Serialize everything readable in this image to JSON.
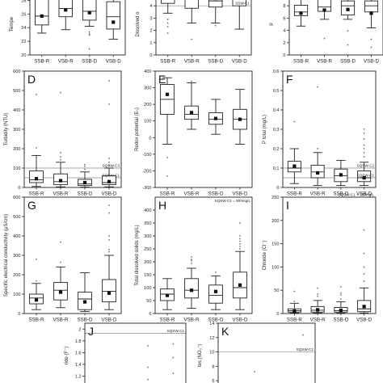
{
  "figure": {
    "categories": [
      "SSB-R",
      "VSB-R",
      "SSB-D",
      "VSB-D"
    ]
  },
  "chart_data": [
    {
      "type": "box",
      "letter": "",
      "ylabel": "Tempe",
      "ylim": [
        20,
        29
      ],
      "yticks": [
        20,
        22,
        24,
        26,
        28
      ],
      "categories": [
        "SSB-R",
        "VSB-R",
        "SSB-D",
        "VSB-D"
      ],
      "boxes": [
        {
          "min": 23.2,
          "q1": 24.4,
          "median": 25.7,
          "q3": 28.3,
          "max": 29.5,
          "mean": 25.7,
          "outliers": []
        },
        {
          "min": 23.7,
          "q1": 25.6,
          "median": 26.8,
          "q3": 28.6,
          "max": 29.5,
          "mean": 26.6,
          "outliers": []
        },
        {
          "min": 24.2,
          "q1": 25.1,
          "median": 26.4,
          "q3": 28.2,
          "max": 29.5,
          "mean": 26.2,
          "outliers": [
            23.4,
            23.1,
            22.9,
            20.9
          ]
        },
        {
          "min": 22.3,
          "q1": 23.8,
          "median": 25.6,
          "q3": 27.8,
          "max": 29.5,
          "mean": 24.8,
          "outliers": []
        }
      ],
      "reference_lines": []
    },
    {
      "type": "box",
      "letter": "",
      "ylabel": "Dissolved o",
      "ylim": [
        0,
        5
      ],
      "yticks": [
        0,
        1,
        2,
        3,
        4
      ],
      "categories": [
        "SSB-R",
        "VSB-R",
        "SSB-D",
        "VSB-D"
      ],
      "boxes": [
        {
          "min": 3.4,
          "q1": 4.2,
          "median": 4.6,
          "q3": 5.2,
          "max": 5.4,
          "mean": 4.7,
          "outliers": [
            2.9,
            2.6,
            2.3,
            1.8
          ]
        },
        {
          "min": 2.6,
          "q1": 3.8,
          "median": 4.6,
          "q3": 5.2,
          "max": 5.4,
          "mean": 5.2,
          "outliers": [
            1.3
          ]
        },
        {
          "min": 2.6,
          "q1": 3.9,
          "median": 4.4,
          "q3": 5.2,
          "max": 5.4,
          "mean": 4.6,
          "outliers": [
            2.4
          ]
        },
        {
          "min": 2.1,
          "q1": 4.0,
          "median": 4.5,
          "q3": 5.2,
          "max": 5.4,
          "mean": 4.9,
          "outliers": []
        }
      ],
      "reference_lines": [
        {
          "value": 4.0,
          "label": "SSW-C1"
        }
      ]
    },
    {
      "type": "box",
      "letter": "",
      "ylabel": "p",
      "ylim": [
        0,
        10
      ],
      "yticks": [
        0,
        2,
        4,
        6,
        8
      ],
      "categories": [
        "SSB-R",
        "VSB-R",
        "SSB-D",
        "VSB-D"
      ],
      "boxes": [
        {
          "min": 4.7,
          "q1": 6.4,
          "median": 7.0,
          "q3": 8.1,
          "max": 10.2,
          "mean": 6.8,
          "outliers": []
        },
        {
          "min": 5.8,
          "q1": 7.1,
          "median": 7.8,
          "q3": 10.0,
          "max": 10.2,
          "mean": 7.3,
          "outliers": [
            2.7
          ]
        },
        {
          "min": 5.8,
          "q1": 6.5,
          "median": 8.0,
          "q3": 8.8,
          "max": 10.2,
          "mean": 7.4,
          "outliers": [
            4.0,
            1.7
          ]
        },
        {
          "min": 4.4,
          "q1": 7.0,
          "median": 8.0,
          "q3": 8.8,
          "max": 10.2,
          "mean": 6.8,
          "outliers": [
            2.6,
            1.3
          ]
        }
      ],
      "reference_lines": []
    },
    {
      "type": "box",
      "letter": "D",
      "ylabel": "Turbidity (NTU)",
      "ylim": [
        0,
        600
      ],
      "yticks": [
        0,
        100,
        200,
        300,
        400,
        500,
        600
      ],
      "categories": [
        "SSB-R",
        "VSB-R",
        "SSB-D",
        "VSB-D"
      ],
      "boxes": [
        {
          "min": 5,
          "q1": 25,
          "median": 40,
          "q3": 85,
          "max": 165,
          "mean": 45,
          "outliers": [
            205,
            480
          ]
        },
        {
          "min": 3,
          "q1": 15,
          "median": 30,
          "q3": 70,
          "max": 130,
          "mean": 35,
          "outliers": [
            145,
            160,
            180,
            490
          ]
        },
        {
          "min": 2,
          "q1": 10,
          "median": 18,
          "q3": 42,
          "max": 80,
          "mean": 25,
          "outliers": [
            95,
            110,
            120
          ]
        },
        {
          "min": 3,
          "q1": 15,
          "median": 25,
          "q3": 60,
          "max": 100,
          "mean": 30,
          "outliers": [
            115,
            130,
            150,
            430,
            550
          ]
        }
      ],
      "reference_lines": [
        {
          "value": 100,
          "label": "SQSW-C3"
        },
        {
          "value": 50,
          "label": "SQSW-C1"
        }
      ]
    },
    {
      "type": "box",
      "letter": "E",
      "ylabel": "Redox potential (Eₕ)",
      "ylim": [
        -300,
        400
      ],
      "yticks": [
        -300,
        -200,
        -100,
        0,
        100,
        200,
        300,
        400
      ],
      "categories": [
        "SSB-R",
        "VSB-R",
        "SSB-D",
        "VSB-D"
      ],
      "boxes": [
        {
          "min": -40,
          "q1": 140,
          "median": 230,
          "q3": 320,
          "max": 360,
          "mean": 260,
          "outliers": [
            -120,
            -230
          ]
        },
        {
          "min": 50,
          "q1": 110,
          "median": 140,
          "q3": 190,
          "max": 330,
          "mean": 150,
          "outliers": [
            340
          ]
        },
        {
          "min": 20,
          "q1": 80,
          "median": 110,
          "q3": 150,
          "max": 230,
          "mean": 115,
          "outliers": []
        },
        {
          "min": -40,
          "q1": 50,
          "median": 110,
          "q3": 170,
          "max": 290,
          "mean": 110,
          "outliers": []
        }
      ],
      "reference_lines": []
    },
    {
      "type": "box",
      "letter": "F",
      "ylabel": "P total (mg/L)",
      "ylim": [
        0,
        0.6
      ],
      "yticks": [
        0,
        0.1,
        0.2,
        0.3,
        0.4,
        0.5,
        0.6
      ],
      "categories": [
        "SSB-R",
        "VSB-R",
        "SSB-D",
        "VSB-D"
      ],
      "boxes": [
        {
          "min": 0.02,
          "q1": 0.08,
          "median": 0.1,
          "q3": 0.135,
          "max": 0.2,
          "mean": 0.11,
          "outliers": [
            0.34
          ]
        },
        {
          "min": 0.01,
          "q1": 0.05,
          "median": 0.08,
          "q3": 0.115,
          "max": 0.18,
          "mean": 0.075,
          "outliers": [
            0.2,
            0.52
          ]
        },
        {
          "min": 0.01,
          "q1": 0.03,
          "median": 0.06,
          "q3": 0.095,
          "max": 0.14,
          "mean": 0.065,
          "outliers": []
        },
        {
          "min": 0.01,
          "q1": 0.03,
          "median": 0.05,
          "q3": 0.085,
          "max": 0.13,
          "mean": 0.05,
          "outliers": [
            0.16,
            0.18,
            0.2,
            0.22,
            0.25,
            0.28,
            0.3
          ]
        }
      ],
      "reference_lines": [
        {
          "value": 0.1,
          "label": "SQSW-C2"
        },
        {
          "value": 0.05,
          "label": "SQSW-C1"
        }
      ]
    },
    {
      "type": "box",
      "letter": "G",
      "ylabel": "Specific electrical conductivity (μS/cm)",
      "ylim": [
        0,
        600
      ],
      "yticks": [
        0,
        100,
        200,
        300,
        400,
        500,
        600
      ],
      "categories": [
        "SSB-R",
        "VSB-R",
        "SSB-D",
        "VSB-D"
      ],
      "boxes": [
        {
          "min": 20,
          "q1": 50,
          "median": 80,
          "q3": 100,
          "max": 155,
          "mean": 70,
          "outliers": [
            170,
            280
          ]
        },
        {
          "min": 30,
          "q1": 70,
          "median": 120,
          "q3": 160,
          "max": 240,
          "mean": 110,
          "outliers": [
            265,
            370
          ]
        },
        {
          "min": 10,
          "q1": 20,
          "median": 75,
          "q3": 110,
          "max": 210,
          "mean": 60,
          "outliers": []
        },
        {
          "min": 20,
          "q1": 60,
          "median": 115,
          "q3": 175,
          "max": 300,
          "mean": 105,
          "outliers": [
            320,
            330,
            380,
            400,
            520,
            560
          ]
        }
      ],
      "reference_lines": []
    },
    {
      "type": "box",
      "letter": "H",
      "ylabel": "Total dissolved solids (mg/L)",
      "ylim": [
        0,
        450
      ],
      "yticks": [
        0,
        50,
        100,
        150,
        200,
        250,
        300,
        350,
        400
      ],
      "categories": [
        "SSB-R",
        "VSB-R",
        "SSB-D",
        "VSB-D"
      ],
      "boxes": [
        {
          "min": 15,
          "q1": 50,
          "median": 75,
          "q3": 95,
          "max": 135,
          "mean": 70,
          "outliers": []
        },
        {
          "min": 20,
          "q1": 60,
          "median": 90,
          "q3": 135,
          "max": 175,
          "mean": 90,
          "outliers": [
            195,
            205,
            210,
            220
          ]
        },
        {
          "min": 15,
          "q1": 40,
          "median": 70,
          "q3": 110,
          "max": 145,
          "mean": 85,
          "outliers": [
            160
          ]
        },
        {
          "min": 15,
          "q1": 60,
          "median": 100,
          "q3": 160,
          "max": 240,
          "mean": 110,
          "outliers": [
            250,
            260,
            270,
            280,
            290,
            300,
            350
          ]
        }
      ],
      "reference_lines": [
        {
          "value": 500,
          "label": "SQSW-C1 = 500mg/L"
        }
      ]
    },
    {
      "type": "box",
      "letter": "I",
      "ylabel": "Chloride (Cl⁻)",
      "ylim": [
        0,
        250
      ],
      "yticks": [
        0,
        50,
        100,
        150,
        200,
        250
      ],
      "categories": [
        "SSB-R",
        "VSB-R",
        "SSB-D",
        "VSB-D"
      ],
      "boxes": [
        {
          "min": 1,
          "q1": 3,
          "median": 6,
          "q3": 10,
          "max": 22,
          "mean": 5,
          "outliers": [
            26,
            48
          ]
        },
        {
          "min": 1,
          "q1": 3,
          "median": 7,
          "q3": 15,
          "max": 28,
          "mean": 8,
          "outliers": [
            38,
            42,
            55
          ]
        },
        {
          "min": 1,
          "q1": 3,
          "median": 6,
          "q3": 13,
          "max": 25,
          "mean": 7,
          "outliers": [
            32,
            40,
            45,
            58
          ]
        },
        {
          "min": 1,
          "q1": 4,
          "median": 10,
          "q3": 28,
          "max": 55,
          "mean": 15,
          "outliers": [
            70,
            85,
            100,
            130,
            180
          ]
        }
      ],
      "reference_lines": [
        {
          "value": 250,
          "label": "SQSW-C1 = 250mg/L"
        }
      ]
    },
    {
      "type": "box",
      "letter": "J",
      "ylabel": "ride (F⁻)",
      "ylim": [
        1.0,
        2.1
      ],
      "yticks": [
        1.0,
        1.2,
        1.4,
        1.6,
        1.8,
        2.0
      ],
      "categories": [
        "SSB-R",
        "VSB-R",
        "SSB-D",
        "VSB-D"
      ],
      "boxes": [],
      "points": [
        {
          "category": 2,
          "value": 1.72
        },
        {
          "category": 2,
          "value": 1.35
        },
        {
          "category": 2,
          "value": 1.15
        },
        {
          "category": 3,
          "value": 1.75
        },
        {
          "category": 3,
          "value": 1.52
        },
        {
          "category": 3,
          "value": 1.25
        }
      ],
      "reference_lines": [
        {
          "value": 1.93,
          "label": "SQSW-C1"
        }
      ]
    },
    {
      "type": "box",
      "letter": "K",
      "ylabel": "tes (NO₃⁻)",
      "ylim": [
        5,
        14
      ],
      "yticks": [
        6,
        8,
        10,
        12,
        14
      ],
      "categories": [
        "SSB-R",
        "VSB-R",
        "SSB-D",
        "VSB-D"
      ],
      "boxes": [],
      "points": [
        {
          "category": 3,
          "value": 12.4
        },
        {
          "category": 1,
          "value": 7.3
        }
      ],
      "reference_lines": [
        {
          "value": 10,
          "label": "SQSW-C1"
        }
      ]
    }
  ]
}
